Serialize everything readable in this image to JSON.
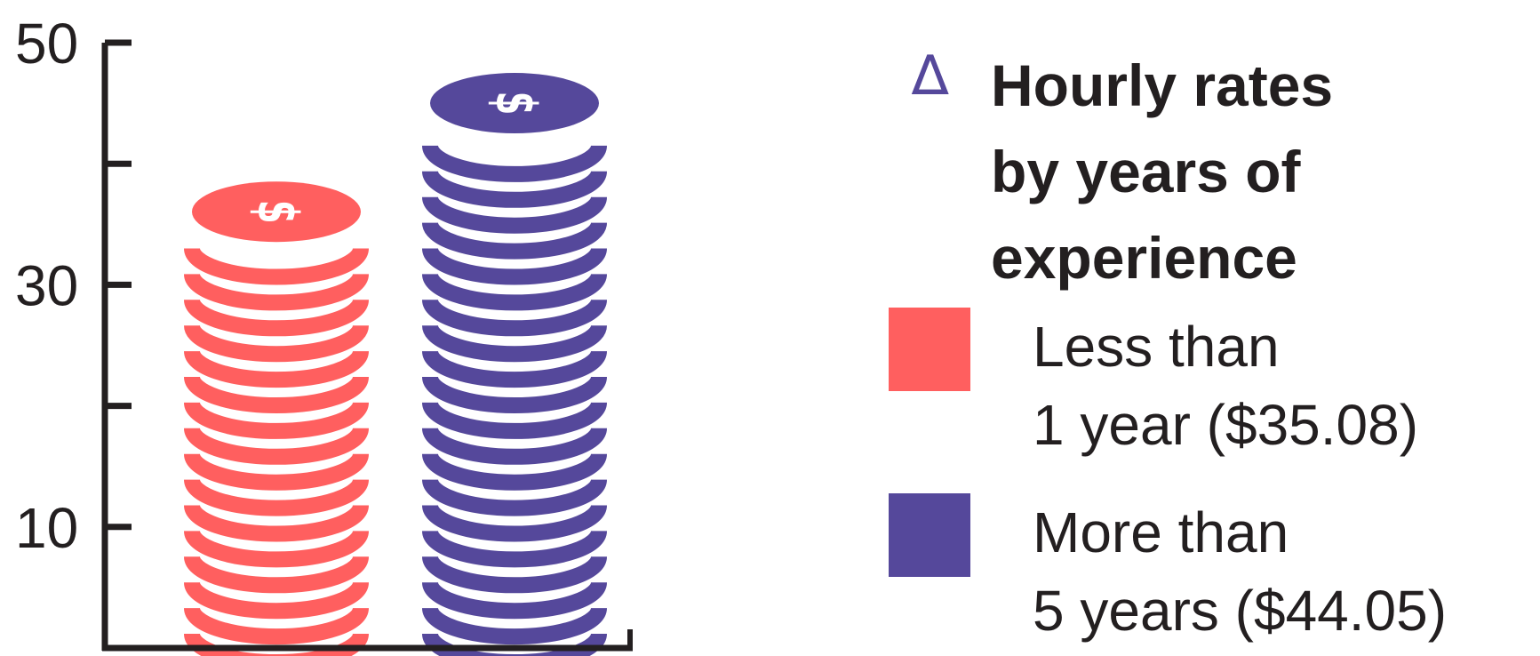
{
  "chart_data": {
    "type": "bar",
    "title": "Hourly rates by years of experience",
    "title_lines": [
      "Hourly rates",
      "by years of",
      "experience"
    ],
    "title_marker": "∆",
    "categories": [
      "Less than 1 year",
      "More than 5 years"
    ],
    "values": [
      35.08,
      44.05
    ],
    "colors": [
      "#ff5f5f",
      "#55489b"
    ],
    "ylim": [
      0,
      50
    ],
    "yticks": [
      10,
      20,
      30,
      40,
      50
    ],
    "ytick_labels": [
      "10",
      "",
      "30",
      "",
      "50"
    ],
    "xlabel": "",
    "ylabel": "",
    "grid": false,
    "legend_position": "right",
    "legend": [
      {
        "line1": "Less than",
        "line2": "1 year ($35.08)",
        "color": "#ff5f5f"
      },
      {
        "line1": "More than",
        "line2": "5 years ($44.05)",
        "color": "#55489b"
      }
    ],
    "coin_symbol": "$"
  }
}
